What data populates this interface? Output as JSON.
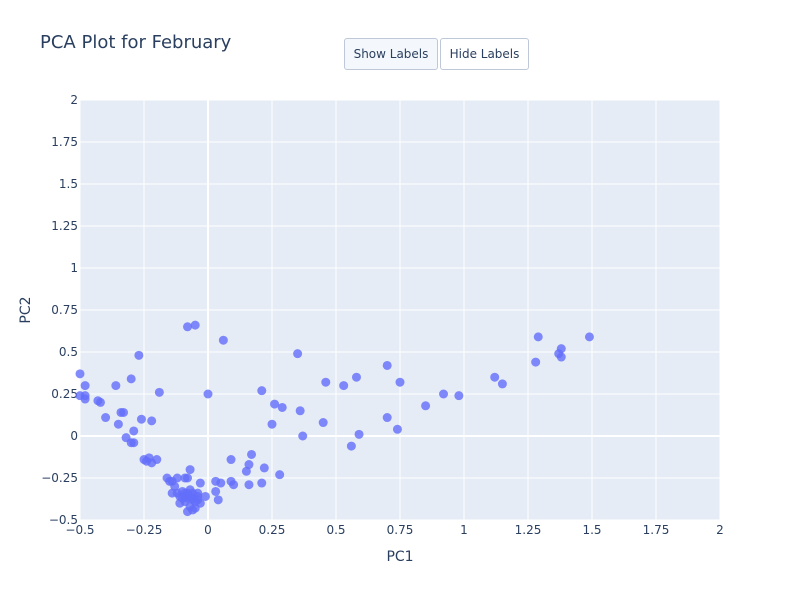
{
  "title": "PCA Plot for February",
  "buttons": {
    "show": "Show Labels",
    "hide": "Hide Labels"
  },
  "colors": {
    "plot_bg": "#e5ecf6",
    "grid": "#ffffff",
    "marker": "#636efa",
    "text": "#2a3f5f"
  },
  "chart_data": {
    "type": "scatter",
    "xlabel": "PC1",
    "ylabel": "PC2",
    "xlim": [
      -0.5,
      2
    ],
    "ylim": [
      -0.5,
      2
    ],
    "xticks": [
      -0.5,
      -0.25,
      0,
      0.25,
      0.5,
      0.75,
      1,
      1.25,
      1.5,
      1.75,
      2
    ],
    "yticks": [
      -0.5,
      -0.25,
      0,
      0.25,
      0.5,
      0.75,
      1,
      1.25,
      1.5,
      1.75,
      2
    ],
    "xtick_labels": [
      "−0.5",
      "−0.25",
      "0",
      "0.25",
      "0.5",
      "0.75",
      "1",
      "1.25",
      "1.5",
      "1.75",
      "2"
    ],
    "ytick_labels": [
      "−0.5",
      "−0.25",
      "0",
      "0.25",
      "0.5",
      "0.75",
      "1",
      "1.25",
      "1.5",
      "1.75",
      "2"
    ],
    "grid": true,
    "points": [
      [
        -0.5,
        0.37
      ],
      [
        -0.48,
        0.3
      ],
      [
        -0.5,
        0.24
      ],
      [
        -0.48,
        0.24
      ],
      [
        -0.48,
        0.22
      ],
      [
        -0.43,
        0.21
      ],
      [
        -0.42,
        0.2
      ],
      [
        -0.4,
        0.11
      ],
      [
        -0.36,
        0.3
      ],
      [
        -0.34,
        0.14
      ],
      [
        -0.33,
        0.14
      ],
      [
        -0.35,
        0.07
      ],
      [
        -0.32,
        -0.01
      ],
      [
        -0.29,
        0.03
      ],
      [
        -0.3,
        -0.04
      ],
      [
        -0.29,
        -0.04
      ],
      [
        -0.3,
        0.34
      ],
      [
        -0.27,
        0.48
      ],
      [
        -0.26,
        0.1
      ],
      [
        -0.22,
        0.09
      ],
      [
        -0.19,
        0.26
      ],
      [
        -0.25,
        -0.14
      ],
      [
        -0.23,
        -0.13
      ],
      [
        -0.24,
        -0.15
      ],
      [
        -0.22,
        -0.16
      ],
      [
        -0.2,
        -0.14
      ],
      [
        -0.16,
        -0.25
      ],
      [
        -0.15,
        -0.27
      ],
      [
        -0.14,
        -0.27
      ],
      [
        -0.12,
        -0.25
      ],
      [
        -0.13,
        -0.3
      ],
      [
        -0.14,
        -0.34
      ],
      [
        -0.12,
        -0.34
      ],
      [
        -0.11,
        -0.36
      ],
      [
        -0.1,
        -0.33
      ],
      [
        -0.11,
        -0.4
      ],
      [
        -0.09,
        -0.39
      ],
      [
        -0.09,
        -0.36
      ],
      [
        -0.08,
        -0.34
      ],
      [
        -0.07,
        -0.32
      ],
      [
        -0.06,
        -0.34
      ],
      [
        -0.08,
        -0.37
      ],
      [
        -0.07,
        -0.42
      ],
      [
        -0.08,
        -0.45
      ],
      [
        -0.06,
        -0.44
      ],
      [
        -0.05,
        -0.43
      ],
      [
        -0.05,
        -0.39
      ],
      [
        -0.04,
        -0.36
      ],
      [
        -0.03,
        -0.4
      ],
      [
        -0.06,
        -0.37
      ],
      [
        -0.04,
        -0.34
      ],
      [
        -0.09,
        -0.34
      ],
      [
        -0.1,
        -0.37
      ],
      [
        -0.07,
        -0.36
      ],
      [
        -0.06,
        -0.38
      ],
      [
        -0.04,
        -0.38
      ],
      [
        -0.08,
        -0.25
      ],
      [
        -0.07,
        -0.2
      ],
      [
        -0.09,
        -0.25
      ],
      [
        -0.03,
        -0.28
      ],
      [
        -0.01,
        -0.36
      ],
      [
        -0.08,
        0.65
      ],
      [
        -0.05,
        0.66
      ],
      [
        0.06,
        0.57
      ],
      [
        0.0,
        0.25
      ],
      [
        0.03,
        -0.27
      ],
      [
        0.05,
        -0.28
      ],
      [
        0.04,
        -0.38
      ],
      [
        0.03,
        -0.33
      ],
      [
        0.09,
        -0.27
      ],
      [
        0.1,
        -0.29
      ],
      [
        0.09,
        -0.14
      ],
      [
        0.15,
        -0.21
      ],
      [
        0.16,
        -0.17
      ],
      [
        0.17,
        -0.11
      ],
      [
        0.16,
        -0.29
      ],
      [
        0.21,
        -0.28
      ],
      [
        0.22,
        -0.19
      ],
      [
        0.28,
        -0.23
      ],
      [
        0.25,
        0.07
      ],
      [
        0.26,
        0.19
      ],
      [
        0.29,
        0.17
      ],
      [
        0.21,
        0.27
      ],
      [
        0.35,
        0.49
      ],
      [
        0.36,
        0.15
      ],
      [
        0.37,
        0.0
      ],
      [
        0.46,
        0.32
      ],
      [
        0.45,
        0.08
      ],
      [
        0.53,
        0.3
      ],
      [
        0.58,
        0.35
      ],
      [
        0.56,
        -0.06
      ],
      [
        0.59,
        0.01
      ],
      [
        0.7,
        0.42
      ],
      [
        0.7,
        0.11
      ],
      [
        0.75,
        0.32
      ],
      [
        0.74,
        0.04
      ],
      [
        0.85,
        0.18
      ],
      [
        0.92,
        0.25
      ],
      [
        0.98,
        0.24
      ],
      [
        1.12,
        0.35
      ],
      [
        1.15,
        0.31
      ],
      [
        1.28,
        0.44
      ],
      [
        1.29,
        0.59
      ],
      [
        1.37,
        0.49
      ],
      [
        1.38,
        0.52
      ],
      [
        1.38,
        0.47
      ],
      [
        1.49,
        0.59
      ]
    ]
  }
}
